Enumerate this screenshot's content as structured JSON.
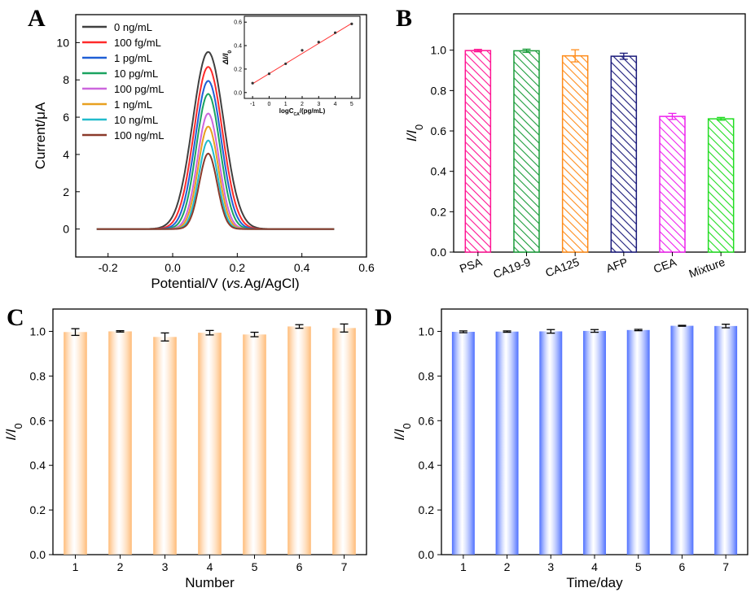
{
  "colors": {
    "axis": "#000000",
    "series_A": [
      "#404040",
      "#ff2a2a",
      "#1f5fd6",
      "#1aa360",
      "#cc66dd",
      "#e8a020",
      "#22bbcc",
      "#8b3a2a"
    ],
    "inset_line": "#ff3333",
    "bars_B": [
      "#ff1493",
      "#1a9c3a",
      "#ff8c1a",
      "#1a1a7a",
      "#ee22ee",
      "#22dd22"
    ],
    "bar_C": "#ffbb77",
    "bar_D": "#4d6fff"
  },
  "chart_data": [
    {
      "id": "A",
      "panel_label": "A",
      "type": "line",
      "xlabel_main": "Potential/V (",
      "xlabel_italic": "vs.",
      "xlabel_tail": "Ag/AgCl)",
      "ylabel": "Current/μA",
      "xlim": [
        -0.3,
        0.6
      ],
      "ylim": [
        -1.5,
        11.5
      ],
      "xticks": [
        "-0.2",
        "0.0",
        "0.2",
        "0.4",
        "0.6"
      ],
      "xtick_values": [
        -0.2,
        0.0,
        0.2,
        0.4,
        0.6
      ],
      "yticks": [
        "0",
        "2",
        "4",
        "6",
        "8",
        "10"
      ],
      "ytick_values": [
        0,
        2,
        4,
        6,
        8,
        10
      ],
      "x_range": [
        -0.235,
        0.5
      ],
      "peak_x": 0.11,
      "series": [
        {
          "name": "0 ng/mL",
          "peak": 9.5,
          "width": 0.068
        },
        {
          "name": "100 fg/mL",
          "peak": 8.7,
          "width": 0.062
        },
        {
          "name": "1 pg/mL",
          "peak": 7.95,
          "width": 0.057
        },
        {
          "name": "10 pg/mL",
          "peak": 7.25,
          "width": 0.052
        },
        {
          "name": "100 pg/mL",
          "peak": 6.2,
          "width": 0.047
        },
        {
          "name": "1 ng/mL",
          "peak": 5.5,
          "width": 0.044
        },
        {
          "name": "10 ng/mL",
          "peak": 4.75,
          "width": 0.041
        },
        {
          "name": "100 ng/mL",
          "peak": 4.05,
          "width": 0.039
        }
      ],
      "inset": {
        "type": "scatter",
        "xlabel": "logC",
        "xlabel_sub": "CA",
        "xlabel_tail": "/(pg/mL)",
        "ylabel": "ΔI/I",
        "ylabel_sub": "0",
        "xlim": [
          -1.5,
          5.5
        ],
        "ylim": [
          -0.05,
          0.65
        ],
        "xticks": [
          "-1",
          "0",
          "1",
          "2",
          "3",
          "4",
          "5"
        ],
        "xtick_values": [
          -1,
          0,
          1,
          2,
          3,
          4,
          5
        ],
        "yticks": [
          "0.0",
          "0.2",
          "0.4",
          "0.6"
        ],
        "ytick_values": [
          0.0,
          0.2,
          0.4,
          0.6
        ],
        "x": [
          -1,
          0,
          1,
          2,
          3,
          4,
          5
        ],
        "y": [
          0.08,
          0.16,
          0.245,
          0.36,
          0.43,
          0.51,
          0.585
        ],
        "fit_x": [
          -1,
          5
        ],
        "fit_y": [
          0.075,
          0.59
        ]
      }
    },
    {
      "id": "B",
      "panel_label": "B",
      "type": "bar",
      "categories": [
        "PSA",
        "CA19-9",
        "CA125",
        "AFP",
        "CEA",
        "Mixture"
      ],
      "values": [
        0.998,
        0.997,
        0.972,
        0.97,
        0.672,
        0.66
      ],
      "errors": [
        0.006,
        0.008,
        0.03,
        0.015,
        0.015,
        0.007
      ],
      "ylabel": "I/I",
      "ylabel_sub": "0",
      "xlabel": "",
      "ylim": [
        0,
        1.18
      ],
      "yticks": [
        "0.0",
        "0.2",
        "0.4",
        "0.6",
        "0.8",
        "1.0"
      ],
      "ytick_values": [
        0.0,
        0.2,
        0.4,
        0.6,
        0.8,
        1.0
      ]
    },
    {
      "id": "C",
      "panel_label": "C",
      "type": "bar",
      "categories": [
        "1",
        "2",
        "3",
        "4",
        "5",
        "6",
        "7"
      ],
      "values": [
        0.997,
        1.0,
        0.975,
        0.994,
        0.986,
        1.022,
        1.015
      ],
      "errors": [
        0.015,
        0.003,
        0.018,
        0.01,
        0.01,
        0.008,
        0.018
      ],
      "xlabel": "Number",
      "ylabel": "I/I",
      "ylabel_sub": "0",
      "ylim": [
        0,
        1.1
      ],
      "yticks": [
        "0.0",
        "0.2",
        "0.4",
        "0.6",
        "0.8",
        "1.0"
      ],
      "ytick_values": [
        0.0,
        0.2,
        0.4,
        0.6,
        0.8,
        1.0
      ]
    },
    {
      "id": "D",
      "panel_label": "D",
      "type": "bar",
      "categories": [
        "1",
        "2",
        "3",
        "4",
        "5",
        "6",
        "7"
      ],
      "values": [
        0.998,
        0.999,
        1.0,
        1.002,
        1.006,
        1.025,
        1.024
      ],
      "errors": [
        0.004,
        0.003,
        0.008,
        0.006,
        0.003,
        0.002,
        0.008
      ],
      "xlabel": "Time/day",
      "ylabel": "I/I",
      "ylabel_sub": "0",
      "ylim": [
        0,
        1.1
      ],
      "yticks": [
        "0.0",
        "0.2",
        "0.4",
        "0.6",
        "0.8",
        "1.0"
      ],
      "ytick_values": [
        0.0,
        0.2,
        0.4,
        0.6,
        0.8,
        1.0
      ]
    }
  ]
}
